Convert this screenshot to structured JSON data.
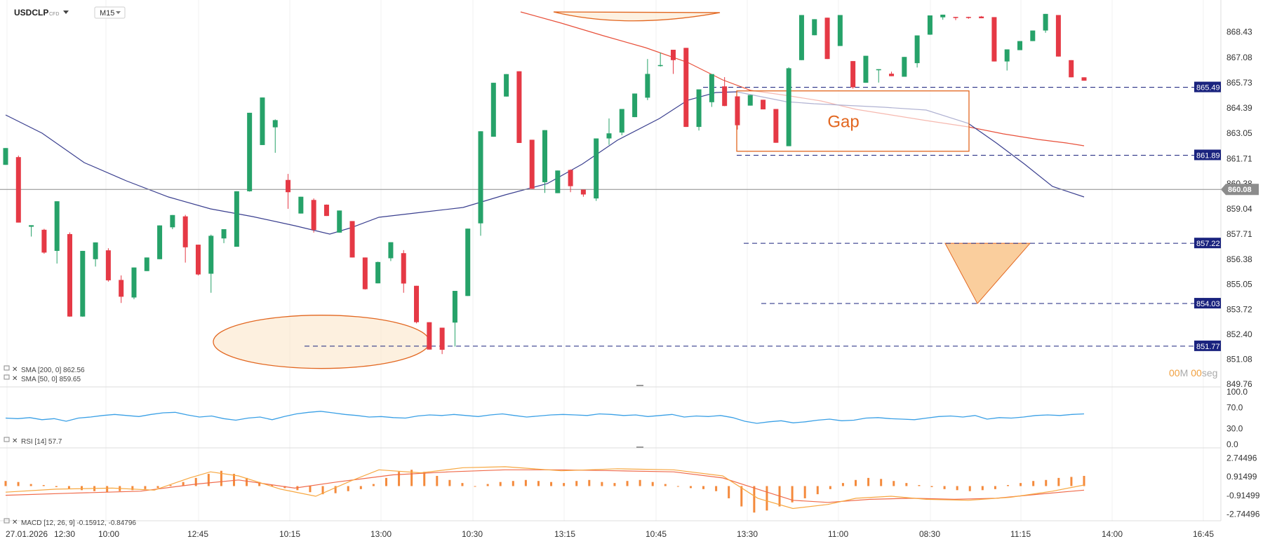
{
  "header": {
    "symbol": "USDCLP",
    "instrument_type": "CFD",
    "timeframe": "M15",
    "dropdown_icon": "chevron-down-icon"
  },
  "indicators": {
    "sma200_label": "SMA [200, 0] 862.56",
    "sma50_label": "SMA [50, 0] 859.65",
    "rsi_label": "RSI [14] 57.7",
    "macd_label": "MACD [12, 26, 9] -0.15912, -0.84796"
  },
  "timer": {
    "minutes": "00",
    "m_unit": "M",
    "seconds": "00",
    "s_unit": "seg"
  },
  "annotation": {
    "gap_label": "Gap"
  },
  "colors": {
    "bull": "#26a269",
    "bear": "#e53945",
    "sma50": "#3a3f8f",
    "sma200": "#e8503a",
    "rsi": "#3aa0e6",
    "macd_line": "#f7a740",
    "signal_line": "#f06a4a",
    "histogram": "#f48a3c",
    "level_line": "#1a237e",
    "badge_bg": "#1a237e",
    "current_badge": "#8c8c8c",
    "annotation": "#e2661f"
  },
  "chart_data": {
    "type": "candlestick",
    "symbol": "USDCLP",
    "timeframe": "M15",
    "ylim": [
      849.76,
      869.3
    ],
    "y_ticks": [
      "868.43",
      "867.08",
      "865.73",
      "864.39",
      "863.05",
      "861.71",
      "860.38",
      "859.04",
      "857.71",
      "856.38",
      "855.05",
      "853.72",
      "852.40",
      "851.08",
      "849.76"
    ],
    "x_ticks": [
      "27.01.2026",
      "12:30",
      "10:00",
      "12:45",
      "10:15",
      "13:00",
      "10:30",
      "13:15",
      "10:45",
      "13:30",
      "11:00",
      "08:30",
      "11:15",
      "14:00",
      "16:45"
    ],
    "current_price": "860.08",
    "current_price_value": 860.08,
    "levels": [
      {
        "label": "865.49",
        "value": 865.49
      },
      {
        "label": "861.89",
        "value": 861.89
      },
      {
        "label": "857.22",
        "value": 857.22
      },
      {
        "label": "854.03",
        "value": 854.03
      },
      {
        "label": "851.77",
        "value": 851.77
      }
    ],
    "candles": [
      [
        861.38,
        862.26,
        861.4,
        862.27
      ],
      [
        861.79,
        861.87,
        858.32,
        858.32
      ],
      [
        858.1,
        858.16,
        857.58,
        858.18
      ],
      [
        857.94,
        857.99,
        856.67,
        856.73
      ],
      [
        856.82,
        859.45,
        856.15,
        859.45
      ],
      [
        857.71,
        857.8,
        853.33,
        853.34
      ],
      [
        853.34,
        856.82,
        853.33,
        856.82
      ],
      [
        856.38,
        857.26,
        855.99,
        857.27
      ],
      [
        856.85,
        856.96,
        855.19,
        855.26
      ],
      [
        855.28,
        855.52,
        854.06,
        854.39
      ],
      [
        854.35,
        855.94,
        854.26,
        855.94
      ],
      [
        855.75,
        856.47,
        855.75,
        856.47
      ],
      [
        856.38,
        858.07,
        856.39,
        858.17
      ],
      [
        858.07,
        858.72,
        857.97,
        858.72
      ],
      [
        858.65,
        858.73,
        856.2,
        857.01
      ],
      [
        857.15,
        857.15,
        855.52,
        855.57
      ],
      [
        855.61,
        857.68,
        854.6,
        857.62
      ],
      [
        857.48,
        857.93,
        857.23,
        857.97
      ],
      [
        857.04,
        859.94,
        857.25,
        859.98
      ],
      [
        859.98,
        863.58,
        859.96,
        864.14
      ],
      [
        862.43,
        863.46,
        863.46,
        864.95
      ],
      [
        863.37,
        863.79,
        862.02,
        863.75
      ],
      [
        860.58,
        860.9,
        859.05,
        859.93
      ],
      [
        858.8,
        859.59,
        859.01,
        859.69
      ],
      [
        859.52,
        859.6,
        857.79,
        857.93
      ],
      [
        859.27,
        859.28,
        858.69,
        858.67
      ],
      [
        857.79,
        858.95,
        858.49,
        858.96
      ],
      [
        858.4,
        858.37,
        856.5,
        856.47
      ],
      [
        856.47,
        856.21,
        854.77,
        854.79
      ],
      [
        855.1,
        856.25,
        855.11,
        856.23
      ],
      [
        856.43,
        857.27,
        856.28,
        857.28
      ],
      [
        856.7,
        856.86,
        854.6,
        855.09
      ],
      [
        854.97,
        854.88,
        852.98,
        853.04
      ],
      [
        853.04,
        851.66,
        853.02,
        851.59
      ],
      [
        852.75,
        852.43,
        851.35,
        851.58
      ],
      [
        853.02,
        854.04,
        851.75,
        854.7
      ],
      [
        854.43,
        855.04,
        854.43,
        858.0
      ],
      [
        858.28,
        857.62,
        858.1,
        863.16
      ],
      [
        862.87,
        862.87,
        865.73,
        865.73
      ],
      [
        865.0,
        866.19,
        866.01,
        866.19
      ],
      [
        866.34,
        862.84,
        866.19,
        862.54
      ],
      [
        862.71,
        861.74,
        860.53,
        860.11
      ],
      [
        860.46,
        859.89,
        860.62,
        863.22
      ],
      [
        859.88,
        859.89,
        860.29,
        861.08
      ],
      [
        861.11,
        861.14,
        859.93,
        860.25
      ],
      [
        860.07,
        859.69,
        859.78,
        859.81
      ],
      [
        859.6,
        859.47,
        859.56,
        862.78
      ],
      [
        862.78,
        863.84,
        862.44,
        863.05
      ],
      [
        863.09,
        863.84,
        862.95,
        864.34
      ],
      [
        863.91,
        864.82,
        863.91,
        865.16
      ],
      [
        864.94,
        866.99,
        864.81,
        866.2
      ],
      [
        866.63,
        867.33,
        866.59,
        866.67
      ],
      [
        867.48,
        867.46,
        866.2,
        866.93
      ],
      [
        867.58,
        866.88,
        863.39,
        863.39
      ],
      [
        863.39,
        864.2,
        863.2,
        865.38
      ],
      [
        864.7,
        864.99,
        864.45,
        866.19
      ],
      [
        865.54,
        866.03,
        864.49,
        864.5
      ],
      [
        865.01,
        864.98,
        863.25,
        863.48
      ],
      [
        864.52,
        864.62,
        864.52,
        865.08
      ],
      [
        864.83,
        864.34,
        864.56,
        864.32
      ],
      [
        864.34,
        864.28,
        862.55,
        862.55
      ],
      [
        862.37,
        866.55,
        862.53,
        866.5
      ],
      [
        866.93,
        866.94,
        866.94,
        869.32
      ],
      [
        868.25,
        868.35,
        868.32,
        869.1
      ],
      [
        869.18,
        869.17,
        866.99,
        866.99
      ],
      [
        867.68,
        867.96,
        868.06,
        869.32
      ],
      [
        866.88,
        866.59,
        865.42,
        865.49
      ],
      [
        865.73,
        866.35,
        866.91,
        867.16
      ],
      [
        866.4,
        866.38,
        865.74,
        866.45
      ],
      [
        866.21,
        866.32,
        866.26,
        866.08
      ],
      [
        866.05,
        866.41,
        866.62,
        867.1
      ],
      [
        866.77,
        866.78,
        866.54,
        868.24
      ],
      [
        868.28,
        868.95,
        868.27,
        869.3
      ],
      [
        869.2,
        869.07,
        869.12,
        869.34
      ],
      [
        869.22,
        869.05,
        869.14,
        869.2
      ],
      [
        869.22,
        869.23,
        869.12,
        869.19
      ],
      [
        869.24,
        869.27,
        869.21,
        869.15
      ],
      [
        869.21,
        868.48,
        866.9,
        866.86
      ],
      [
        866.86,
        867.43,
        866.38,
        867.5
      ],
      [
        867.46,
        867.52,
        867.46,
        867.94
      ],
      [
        867.94,
        867.98,
        868.14,
        868.5
      ],
      [
        868.5,
        869.24,
        868.38,
        869.38
      ],
      [
        869.32,
        868.63,
        867.13,
        867.12
      ],
      [
        866.93,
        866.39,
        866.69,
        866.02
      ],
      [
        866.02,
        865.94,
        865.94,
        865.84
      ]
    ],
    "annotations": [
      "Gap rectangle 862.10-865.30",
      "Ellipse around 851.6-852.5 low",
      "Orange triangle reversal 854.03-857.22"
    ],
    "sub_panels": {
      "rsi": {
        "label": "RSI [14]",
        "value": 57.7,
        "ticks": [
          "100.0",
          "70.0",
          "30.0",
          "0.0"
        ]
      },
      "macd": {
        "label": "MACD [12, 26, 9]",
        "values": [
          -0.15912,
          -0.84796
        ],
        "ticks": [
          "2.74496",
          "0.91499",
          "-0.91499",
          "-2.74496"
        ]
      }
    }
  }
}
